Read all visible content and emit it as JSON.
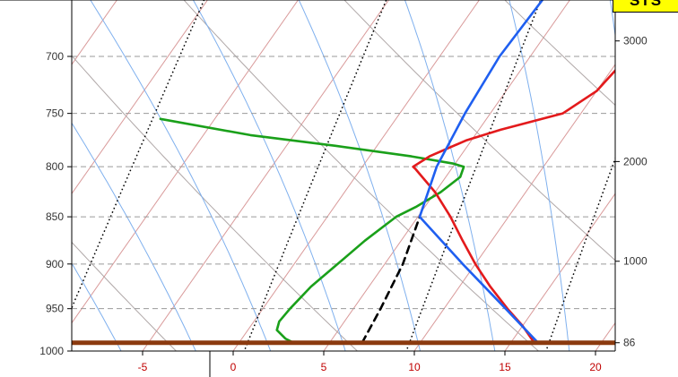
{
  "badge": {
    "text": "STS"
  },
  "colors": {
    "temperature": "#e31a1c",
    "dewpoint": "#1aa01a",
    "parcel": "#1f5ff0",
    "parcel_dry_adiabat": "#000000",
    "surface": "#8b3a0f",
    "isotherm": "#d99a9a",
    "dry_adiabat": "#b0a8a8",
    "moist_adiabat": "#7fb0ee",
    "mixing_ratio": "#000000",
    "pressure_grid": "#9a9a9a",
    "temperature_tick_labels": "#c00000"
  },
  "chart_data": {
    "type": "line",
    "title": "",
    "xlabel": "",
    "ylabel": "",
    "x_axis": {
      "ticks": [
        "-5",
        "0",
        "5",
        "10",
        "15",
        "20"
      ],
      "range": [
        -9.2,
        21.2
      ],
      "skewed": true
    },
    "y_left": {
      "ticks": [
        "700",
        "750",
        "800",
        "850",
        "900",
        "950",
        "1000"
      ],
      "scale": "log",
      "range": [
        1002,
        652
      ]
    },
    "y_right": {
      "ticks": [
        {
          "p": 687,
          "label": "3000"
        },
        {
          "p": 795,
          "label": "2000"
        },
        {
          "p": 897,
          "label": "1000"
        },
        {
          "p": 990,
          "label": "86"
        }
      ]
    },
    "grid": true,
    "surface_pressure": 990,
    "series": [
      {
        "name": "",
        "kind": "temperature",
        "points": [
          [
            990,
            16.3
          ],
          [
            970,
            15.0
          ],
          [
            950,
            13.5
          ],
          [
            925,
            11.7
          ],
          [
            900,
            10.0
          ],
          [
            875,
            8.4
          ],
          [
            850,
            6.8
          ],
          [
            825,
            5.0
          ],
          [
            810,
            3.7
          ],
          [
            802,
            3.0
          ],
          [
            800,
            2.8
          ],
          [
            790,
            3.3
          ],
          [
            775,
            4.7
          ],
          [
            765,
            6.2
          ],
          [
            750,
            9.0
          ],
          [
            730,
            10.0
          ],
          [
            700,
            10.4
          ],
          [
            680,
            11.0
          ],
          [
            660,
            11.5
          ],
          [
            650,
            12.0
          ]
        ]
      },
      {
        "name": "",
        "kind": "dewpoint",
        "points": [
          [
            990,
            3.0
          ],
          [
            985,
            2.4
          ],
          [
            975,
            1.6
          ],
          [
            965,
            1.4
          ],
          [
            950,
            1.5
          ],
          [
            925,
            1.8
          ],
          [
            900,
            2.4
          ],
          [
            875,
            3.0
          ],
          [
            850,
            3.8
          ],
          [
            840,
            4.5
          ],
          [
            825,
            5.3
          ],
          [
            810,
            5.8
          ],
          [
            800,
            5.6
          ],
          [
            797,
            4.9
          ],
          [
            790,
            2.3
          ],
          [
            780,
            -2.3
          ],
          [
            770,
            -7.4
          ],
          [
            755,
            -13.0
          ]
        ]
      },
      {
        "name": "",
        "kind": "parcel",
        "points": [
          [
            990,
            16.5
          ],
          [
            950,
            13.4
          ],
          [
            900,
            9.3
          ],
          [
            850,
            5.1
          ],
          [
            800,
            4.1
          ],
          [
            750,
            3.6
          ],
          [
            700,
            3.3
          ],
          [
            650,
            3.5
          ]
        ]
      },
      {
        "name": "",
        "kind": "parcel-dry-adiabat",
        "points": [
          [
            990,
            6.8
          ],
          [
            950,
            6.5
          ],
          [
            900,
            6.0
          ],
          [
            850,
            5.1
          ]
        ]
      }
    ]
  }
}
